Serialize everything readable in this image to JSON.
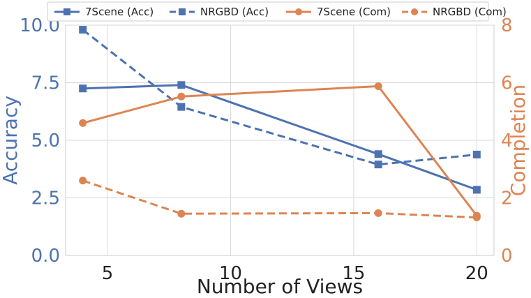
{
  "chart_data": {
    "type": "line",
    "xlabel": "Number of Views",
    "ylabel_left": "Accuracy",
    "ylabel_right": "Completion",
    "xlim": [
      3.3,
      20.7
    ],
    "ylim_left": [
      0,
      10
    ],
    "ylim_right": [
      0,
      8
    ],
    "x_ticks": [
      5,
      10,
      15,
      20
    ],
    "y_ticks_left": [
      "0.0",
      "2.5",
      "5.0",
      "7.5",
      "10.0"
    ],
    "y_ticks_right": [
      "0",
      "2",
      "4",
      "6",
      "8"
    ],
    "grid": true,
    "legend_position": "top",
    "series": [
      {
        "name": "7Scene (Acc)",
        "axis": "left",
        "style": "solid",
        "marker": "square",
        "color": "#4C72B0",
        "x": [
          4,
          8,
          16,
          20
        ],
        "values": [
          7.25,
          7.4,
          4.4,
          2.85
        ]
      },
      {
        "name": "NRGBD (Acc)",
        "axis": "left",
        "style": "dashed",
        "marker": "square",
        "color": "#4C72B0",
        "x": [
          4,
          8,
          16,
          20
        ],
        "values": [
          9.8,
          6.45,
          3.95,
          4.38
        ]
      },
      {
        "name": "7Scene (Com)",
        "axis": "right",
        "style": "solid",
        "marker": "circle",
        "color": "#DD8452",
        "x": [
          4,
          8,
          16,
          20
        ],
        "values": [
          4.6,
          5.52,
          5.88,
          1.38
        ]
      },
      {
        "name": "NRGBD (Com)",
        "axis": "right",
        "style": "dashed",
        "marker": "circle",
        "color": "#DD8452",
        "x": [
          4,
          8,
          16,
          20
        ],
        "values": [
          2.6,
          1.45,
          1.47,
          1.32
        ]
      }
    ]
  }
}
